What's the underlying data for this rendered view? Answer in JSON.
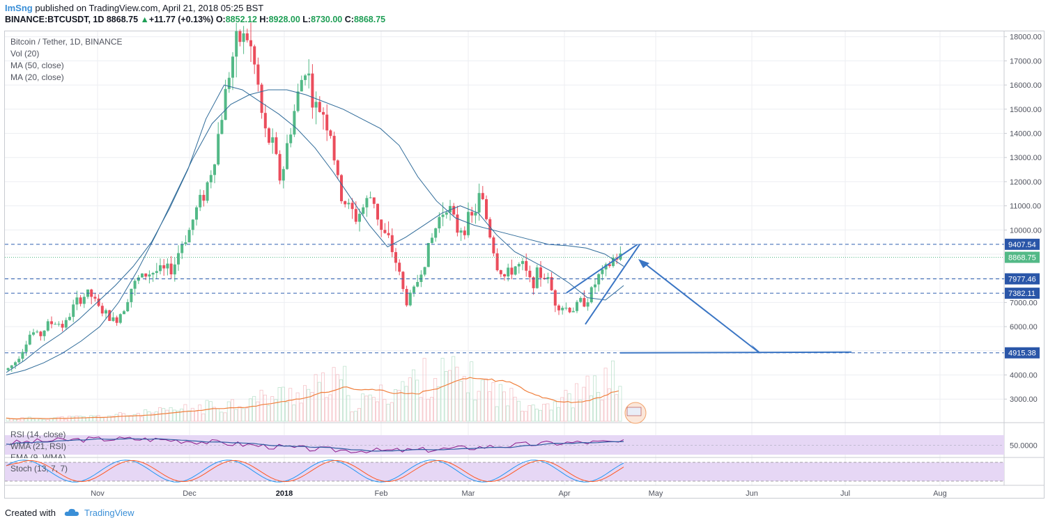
{
  "publish": {
    "user": "ImSng",
    "text": "published on TradingView.com, April 21, 2018 05:25 BST"
  },
  "ticker": {
    "symbol": "BINANCE:BTCUSDT, 1D",
    "last": "8868.75",
    "change": "+11.77 (+0.13%)",
    "open_label": "O:",
    "open": "8852.12",
    "high_label": "H:",
    "high": "8928.00",
    "low_label": "L:",
    "low": "8730.00",
    "close_label": "C:",
    "close": "8868.75"
  },
  "legend": {
    "title": "Bitcoin / Tether, 1D, BINANCE",
    "vol": "Vol (20)",
    "ma50": "MA (50, close)",
    "ma20": "MA (20, close)",
    "rsi": "RSI (14, close)",
    "wma": "WMA (21, RSI)",
    "ema": "EMA (9, WMA)",
    "stoch": "Stoch (13, 7, 7)"
  },
  "footer": {
    "created": "Created with",
    "brand": "TradingView"
  },
  "colors": {
    "up": "#53b987",
    "down": "#eb4d5c",
    "ma": "#2f6b99",
    "hline": "#2d5fb0",
    "drawing": "#3a75c4",
    "vol_ma": "#f07f3c",
    "rsi": "#8b1a8b",
    "stoch_k": "#2196f3",
    "stoch_d": "#ff5722",
    "band": "#e6d7f5"
  },
  "chart_data": [
    {
      "type": "candlestick",
      "title": "Bitcoin / Tether, 1D, BINANCE",
      "y_ticks": [
        3000,
        4000,
        5000,
        6000,
        7000,
        8000,
        9000,
        10000,
        11000,
        12000,
        13000,
        14000,
        15000,
        16000,
        17000,
        18000
      ],
      "x_ticks": [
        "Nov",
        "Dec",
        "2018",
        "Feb",
        "Mar",
        "Apr",
        "May",
        "Jun",
        "Jul",
        "Aug"
      ],
      "horizontal_levels": [
        {
          "value": 9407.54,
          "label": "9407.54",
          "style": "dashed"
        },
        {
          "value": 8868.75,
          "label": "8868.75",
          "style": "dotted",
          "highlight": "last"
        },
        {
          "value": 7977.46,
          "label": "7977.46",
          "style": "dashed"
        },
        {
          "value": 7382.11,
          "label": "7382.11",
          "style": "dashed"
        },
        {
          "value": 4915.38,
          "label": "4915.38",
          "style": "dashed"
        }
      ],
      "ohlc_last": {
        "open": 8852.12,
        "high": 8928.0,
        "low": 8730.0,
        "close": 8868.75
      },
      "trend_path": [
        4200,
        4500,
        5100,
        5800,
        5600,
        6100,
        6200,
        6000,
        6800,
        7200,
        7400,
        6800,
        6500,
        6200,
        6700,
        7600,
        8000,
        8200,
        8300,
        8300,
        8400,
        9400,
        10000,
        11000,
        11700,
        13000,
        15000,
        17000,
        17900,
        18000,
        16500,
        14000,
        13500,
        12000,
        14000,
        15500,
        17000,
        15000,
        15000,
        14000,
        11500,
        11000,
        10500,
        11000,
        11500,
        10000,
        9500,
        8500,
        7000,
        7500,
        8500,
        9500,
        10500,
        11200,
        10000,
        10200,
        10500,
        11500,
        10000,
        8500,
        8000,
        8500,
        8500,
        7800,
        8200,
        8000,
        7000,
        6800,
        6700,
        7000,
        7200,
        8000,
        8300,
        8850,
        8870
      ],
      "ma_50": [
        4000,
        4200,
        4500,
        4900,
        5400,
        6000,
        7000,
        8300,
        9800,
        11400,
        13000,
        14400,
        15200,
        15600,
        15800,
        15800,
        15600,
        15300,
        15000,
        14600,
        14200,
        13500,
        12200,
        11200,
        10500,
        10200,
        10000,
        9800,
        9600,
        9400,
        9350,
        9250,
        9000,
        8500
      ],
      "ma_20": [
        4100,
        4600,
        5200,
        5700,
        6300,
        7000,
        7700,
        8500,
        9500,
        10900,
        12500,
        14600,
        16000,
        15800,
        15300,
        14800,
        14200,
        13400,
        12400,
        11300,
        10200,
        9300,
        9700,
        10200,
        10700,
        11000,
        10700,
        9800,
        9100,
        8700,
        8300,
        7800,
        7200,
        7100,
        7700
      ],
      "drawing": {
        "wedge_upper_start": 7400,
        "wedge_upper_end": 9407.54,
        "wedge_lower_start": 6100,
        "wedge_lower_end": 9400,
        "arrow_target": 4915.38
      }
    },
    {
      "type": "bar",
      "name": "Vol (20)",
      "note": "volume histogram with moving average overlay"
    },
    {
      "type": "line",
      "title": "RSI (14, close)",
      "y_ticks": [
        50
      ],
      "tick_label": "50.0000"
    },
    {
      "type": "line",
      "title": "Stoch (13, 7, 7)"
    }
  ]
}
